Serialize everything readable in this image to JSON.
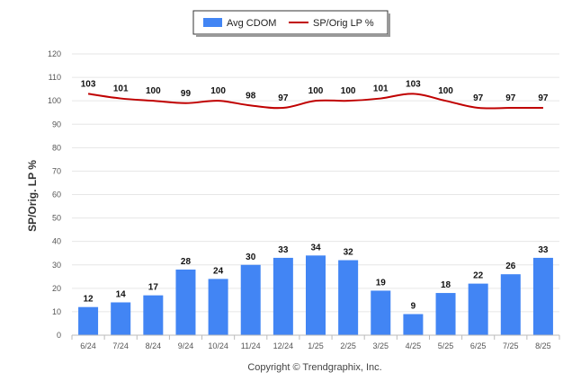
{
  "chart_data": {
    "type": "bar",
    "categories": [
      "6/24",
      "7/24",
      "8/24",
      "9/24",
      "10/24",
      "11/24",
      "12/24",
      "1/25",
      "2/25",
      "3/25",
      "4/25",
      "5/25",
      "6/25",
      "7/25",
      "8/25"
    ],
    "series": [
      {
        "name": "Avg CDOM",
        "type": "bar",
        "color": "#4285f4",
        "values": [
          12,
          14,
          17,
          28,
          24,
          30,
          33,
          34,
          32,
          19,
          9,
          18,
          22,
          26,
          33
        ]
      },
      {
        "name": "SP/Orig LP %",
        "type": "line",
        "color": "#c00000",
        "values": [
          103,
          101,
          100,
          99,
          100,
          98,
          97,
          100,
          100,
          101,
          103,
          100,
          97,
          97,
          97
        ]
      }
    ],
    "ylabel": "SP/Orig. LP %",
    "xlabel": "",
    "ylim": [
      0,
      120
    ],
    "yticks": [
      0,
      10,
      20,
      30,
      40,
      50,
      60,
      70,
      80,
      90,
      100,
      110,
      120
    ],
    "grid": true,
    "legend": "top-center",
    "credit": "Copyright © Trendgraphix, Inc."
  }
}
